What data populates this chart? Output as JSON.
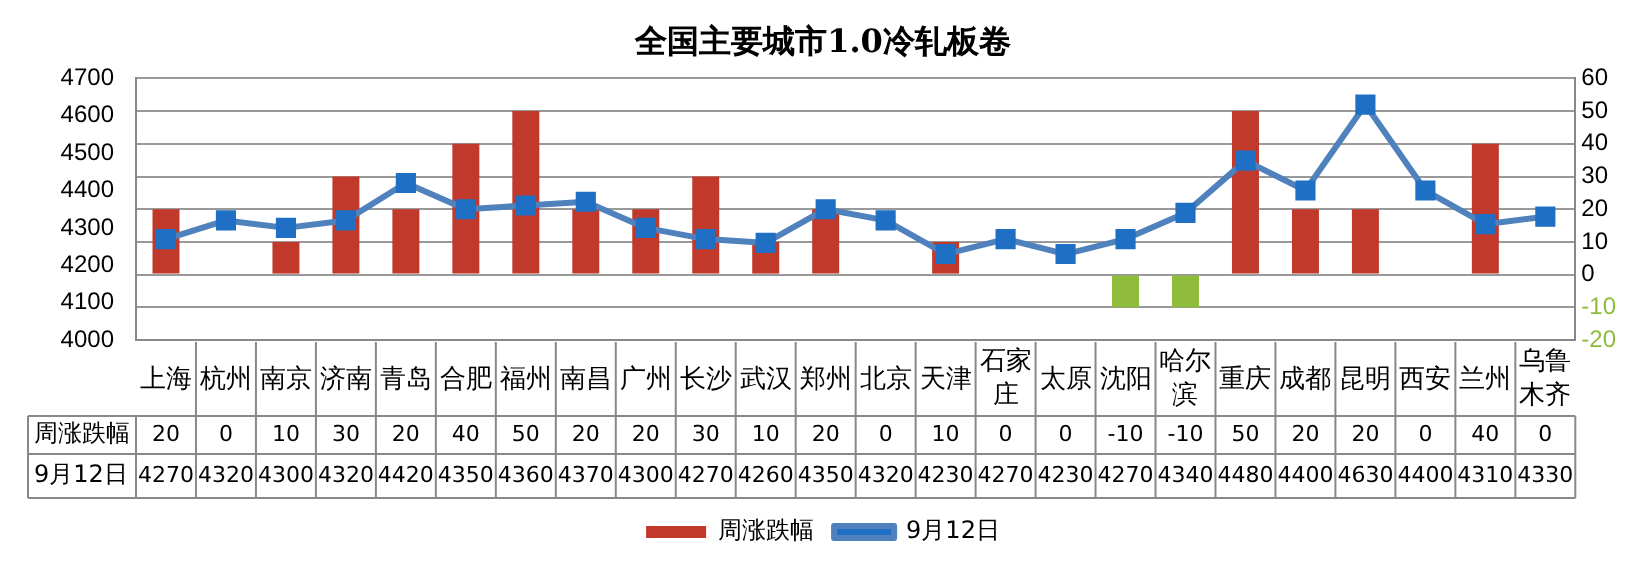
{
  "chart_data": {
    "type": "bar",
    "title": "全国主要城市1.0冷轧板卷",
    "categories": [
      "上海",
      "杭州",
      "南京",
      "济南",
      "青岛",
      "合肥",
      "福州",
      "南昌",
      "广州",
      "长沙",
      "武汉",
      "郑州",
      "北京",
      "天津",
      "石家庄",
      "太原",
      "沈阳",
      "哈尔滨",
      "重庆",
      "成都",
      "昆明",
      "西安",
      "兰州",
      "乌鲁木齐"
    ],
    "series": [
      {
        "name": "周涨跌幅",
        "axis": "y2",
        "colors": [
          "#c0392b",
          "#c0392b",
          "#c0392b",
          "#c0392b",
          "#c0392b",
          "#c0392b",
          "#c0392b",
          "#c0392b",
          "#c0392b",
          "#c0392b",
          "#c0392b",
          "#c0392b",
          "#c0392b",
          "#c0392b",
          "#c0392b",
          "#c0392b",
          "#8fbc3b",
          "#8fbc3b",
          "#c0392b",
          "#c0392b",
          "#c0392b",
          "#c0392b",
          "#c0392b",
          "#c0392b"
        ],
        "values": [
          20,
          0,
          10,
          30,
          20,
          40,
          50,
          20,
          20,
          30,
          10,
          20,
          0,
          10,
          0,
          0,
          -10,
          -10,
          50,
          20,
          20,
          0,
          40,
          0
        ]
      },
      {
        "name": "9月12日",
        "type": "line",
        "axis": "y",
        "color": "#4f81bd",
        "values": [
          4270,
          4320,
          4300,
          4320,
          4420,
          4350,
          4360,
          4370,
          4300,
          4270,
          4260,
          4350,
          4320,
          4230,
          4270,
          4230,
          4270,
          4340,
          4480,
          4400,
          4630,
          4400,
          4310,
          4330
        ]
      }
    ],
    "ylim": [
      4000,
      4700
    ],
    "yticks": [
      4000,
      4100,
      4200,
      4300,
      4400,
      4500,
      4600,
      4700
    ],
    "y2lim": [
      -20,
      60
    ],
    "y2ticks": [
      -20,
      -10,
      0,
      10,
      20,
      30,
      40,
      50,
      60
    ],
    "grid": "y",
    "legend": "bottom",
    "marker": "square",
    "line_style": "solid",
    "data_labels": true
  }
}
